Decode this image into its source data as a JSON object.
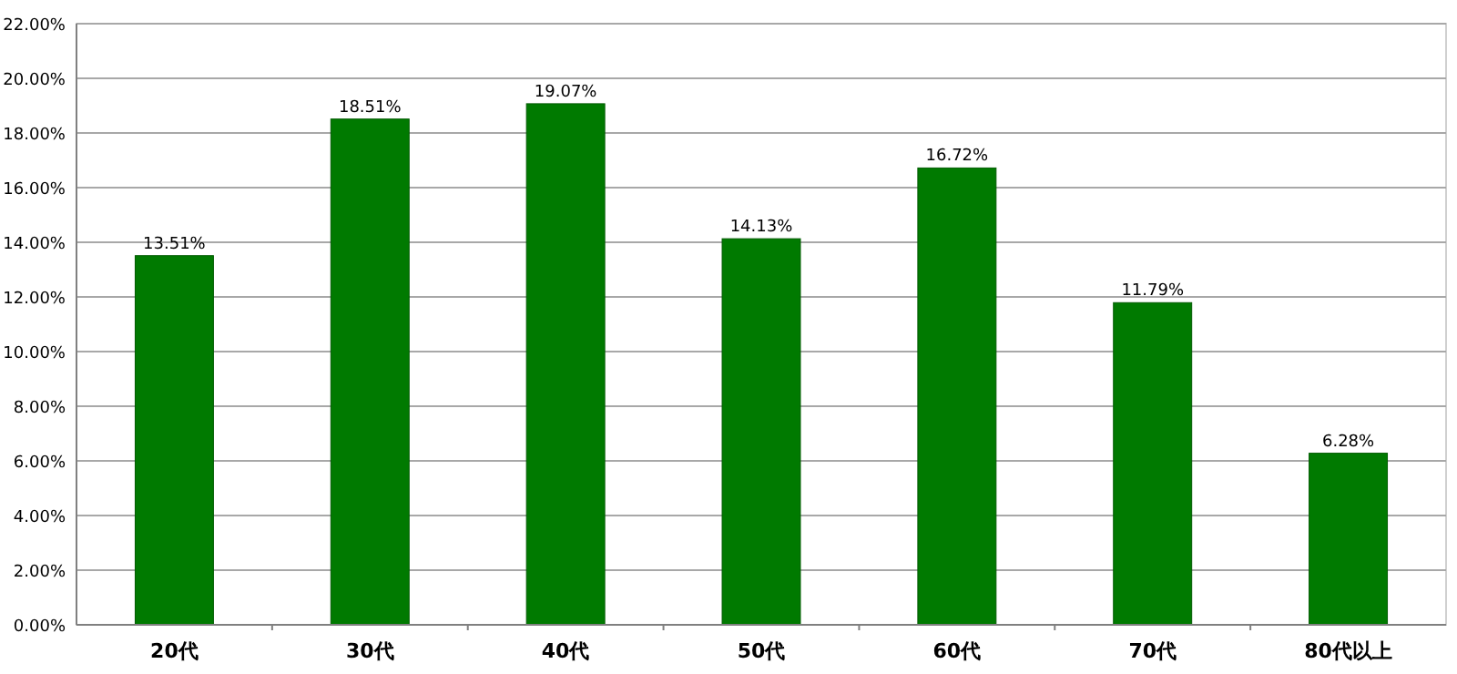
{
  "chart_data": {
    "type": "bar",
    "categories": [
      "20代",
      "30代",
      "40代",
      "50代",
      "60代",
      "70代",
      "80代以上"
    ],
    "values": [
      13.51,
      18.51,
      19.07,
      14.13,
      16.72,
      11.79,
      6.28
    ],
    "value_labels": [
      "13.51%",
      "18.51%",
      "19.07%",
      "14.13%",
      "16.72%",
      "11.79%",
      "6.28%"
    ],
    "color": "#007a00",
    "ylim": [
      0,
      22
    ],
    "yticks": [
      {
        "value": 0,
        "label": "0.00%"
      },
      {
        "value": 2,
        "label": "2.00%"
      },
      {
        "value": 4,
        "label": "4.00%"
      },
      {
        "value": 6,
        "label": "6.00%"
      },
      {
        "value": 8,
        "label": "8.00%"
      },
      {
        "value": 10,
        "label": "10.00%"
      },
      {
        "value": 12,
        "label": "12.00%"
      },
      {
        "value": 14,
        "label": "14.00%"
      },
      {
        "value": 16,
        "label": "16.00%"
      },
      {
        "value": 18,
        "label": "18.00%"
      },
      {
        "value": 20,
        "label": "20.00%"
      },
      {
        "value": 22,
        "label": "22.00%"
      }
    ],
    "grid": "y"
  }
}
